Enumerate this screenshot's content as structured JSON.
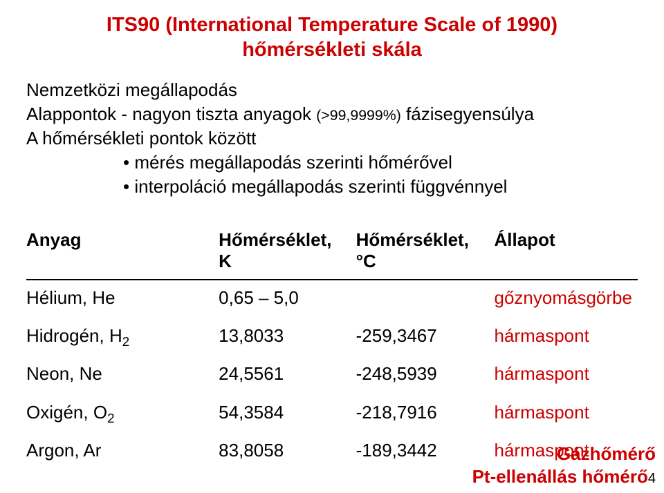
{
  "title": {
    "line1": "ITS90 (International Temperature Scale of 1990)",
    "line2": "hőmérsékleti skála",
    "color": "#cc0000",
    "fontsize": 29
  },
  "intro": {
    "line1": "Nemzetközi megállapodás",
    "line2_a": "Alappontok - nagyon tiszta anyagok ",
    "line2_b": "(>99,9999%)",
    "line2_c": " fázisegyensúlya",
    "line3": "A hőmérsékleti pontok között",
    "color": "#000000",
    "fontsize": 26
  },
  "bullets": {
    "items": [
      "mérés megállapodás szerinti hőmérővel",
      "interpoláció megállapodás szerinti függvénnyel"
    ],
    "fontsize": 26,
    "color": "#000000"
  },
  "table": {
    "fontsize": 26,
    "header_color": "#000000",
    "body_color": "#000000",
    "state_color": "#cc0000",
    "columns": [
      "Anyag",
      "Hőmérséklet, K",
      "Hőmérséklet, °C",
      "Állapot"
    ],
    "rows": [
      {
        "anyag_pre": "Hélium, He",
        "anyag_sub": "",
        "k": "0,65 – 5,0",
        "c": "",
        "state": "gőznyomásgörbe"
      },
      {
        "anyag_pre": "Hidrogén, H",
        "anyag_sub": "2",
        "k": "13,8033",
        "c": "-259,3467",
        "state": "hármaspont"
      },
      {
        "anyag_pre": "Neon, Ne",
        "anyag_sub": "",
        "k": "24,5561",
        "c": "-248,5939",
        "state": "hármaspont"
      },
      {
        "anyag_pre": "Oxigén, O",
        "anyag_sub": "2",
        "k": "54,3584",
        "c": "-218,7916",
        "state": "hármaspont"
      },
      {
        "anyag_pre": "Argon, Ar",
        "anyag_sub": "",
        "k": "83,8058",
        "c": "-189,3442",
        "state": "hármaspont"
      }
    ]
  },
  "footer": {
    "line1": "Gázhőmérő",
    "line2": "Pt-ellenállás hőmérő",
    "color": "#cc0000",
    "fontsize": 26,
    "pagenum": "4"
  }
}
